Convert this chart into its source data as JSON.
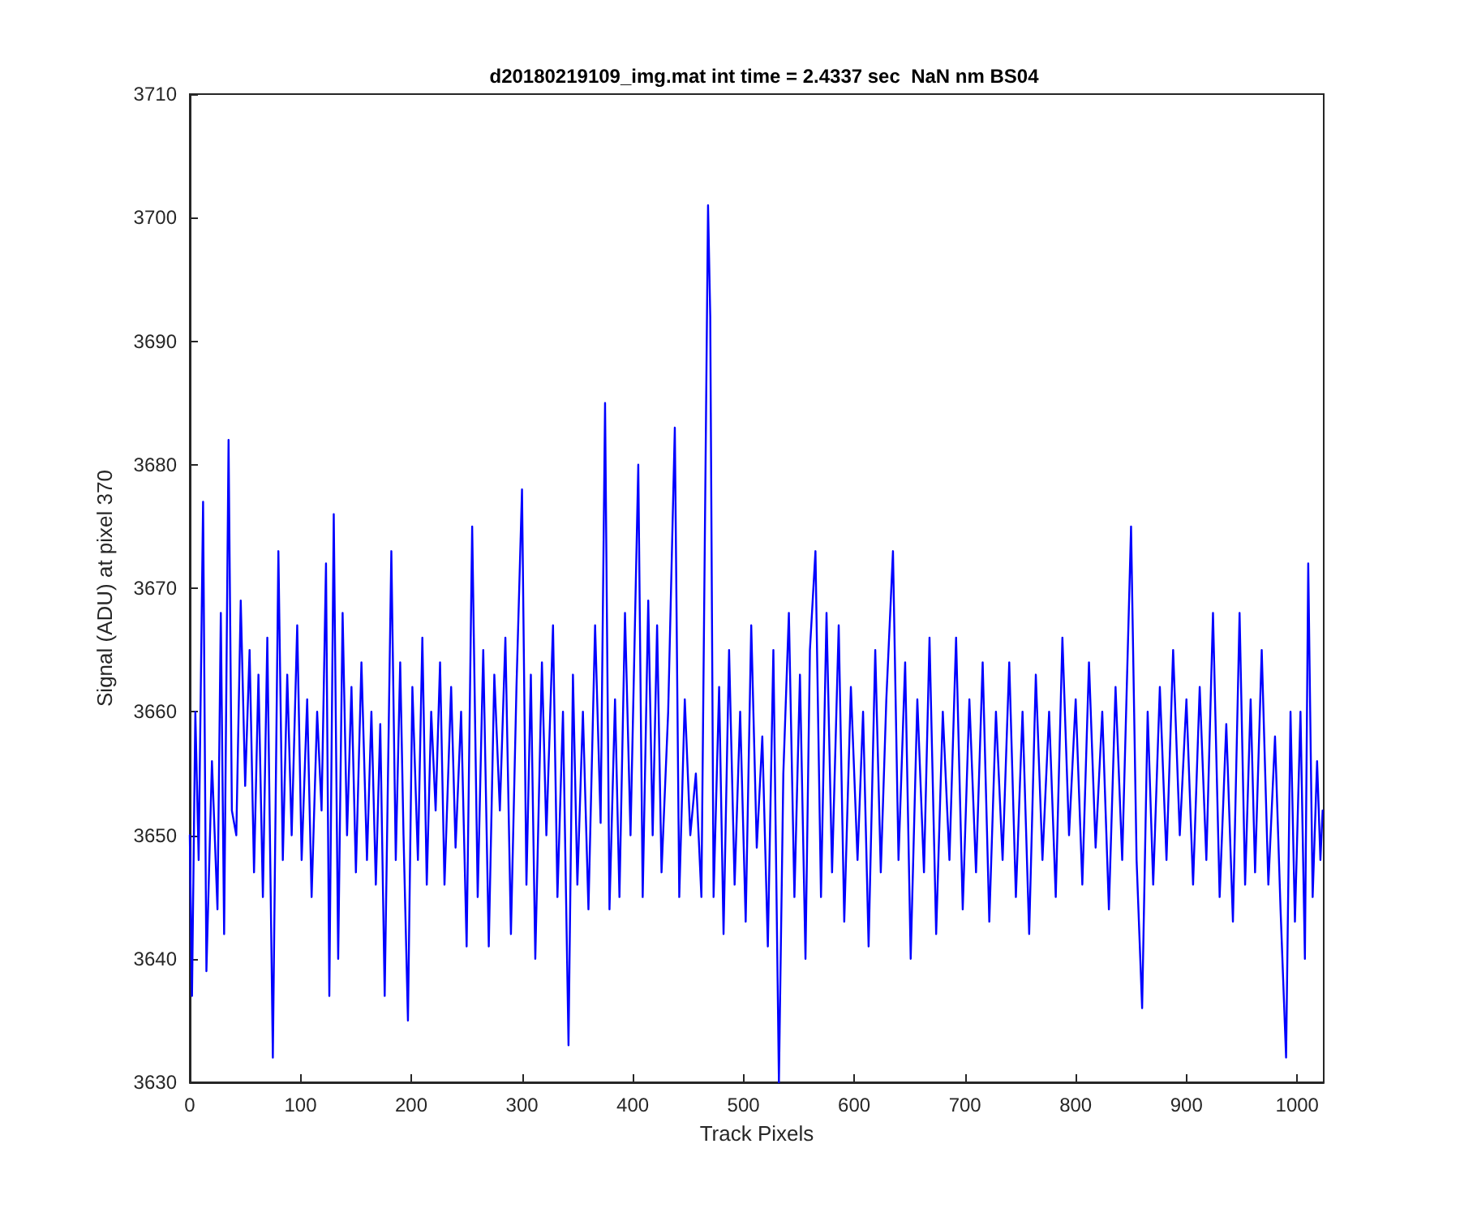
{
  "chart_data": {
    "type": "line",
    "title": "d20180219109_img.mat int time = 2.4337 sec  NaN nm BS04",
    "xlabel": "Track Pixels",
    "ylabel": "Signal (ADU) at pixel 370",
    "x": [
      0,
      2,
      5,
      8,
      12,
      15,
      20,
      25,
      28,
      31,
      35,
      38,
      42,
      46,
      50,
      54,
      58,
      62,
      66,
      70,
      75,
      80,
      84,
      88,
      92,
      97,
      101,
      106,
      110,
      115,
      119,
      123,
      126,
      130,
      134,
      138,
      142,
      146,
      150,
      155,
      160,
      164,
      168,
      172,
      176,
      182,
      186,
      190,
      193,
      197,
      201,
      206,
      210,
      214,
      218,
      222,
      226,
      230,
      236,
      240,
      245,
      250,
      255,
      260,
      265,
      270,
      275,
      280,
      285,
      290,
      295,
      300,
      304,
      308,
      312,
      318,
      322,
      328,
      332,
      337,
      342,
      346,
      350,
      355,
      360,
      366,
      371,
      375,
      379,
      384,
      388,
      393,
      398,
      405,
      409,
      414,
      418,
      422,
      426,
      432,
      438,
      442,
      447,
      452,
      457,
      462,
      468,
      470,
      473,
      478,
      482,
      487,
      492,
      497,
      502,
      507,
      512,
      517,
      522,
      527,
      532,
      536,
      541,
      546,
      551,
      556,
      560,
      565,
      570,
      575,
      580,
      586,
      591,
      597,
      603,
      608,
      613,
      619,
      624,
      629,
      635,
      640,
      646,
      651,
      657,
      663,
      668,
      674,
      680,
      686,
      692,
      698,
      704,
      710,
      716,
      722,
      728,
      734,
      740,
      746,
      752,
      758,
      764,
      770,
      776,
      782,
      788,
      794,
      800,
      806,
      812,
      818,
      824,
      830,
      836,
      842,
      850,
      855,
      860,
      865,
      870,
      876,
      882,
      888,
      894,
      900,
      906,
      912,
      918,
      924,
      930,
      936,
      942,
      948,
      953,
      958,
      962,
      968,
      974,
      980,
      985,
      990,
      994,
      998,
      1003,
      1007,
      1010,
      1014,
      1018,
      1021,
      1023
    ],
    "series": [
      {
        "color": "#0000ff",
        "values": [
          3650,
          3637,
          3660,
          3648,
          3677,
          3639,
          3656,
          3644,
          3668,
          3642,
          3682,
          3652,
          3650,
          3669,
          3654,
          3665,
          3647,
          3663,
          3645,
          3666,
          3632,
          3673,
          3648,
          3663,
          3650,
          3667,
          3648,
          3661,
          3645,
          3660,
          3652,
          3672,
          3637,
          3676,
          3640,
          3668,
          3650,
          3662,
          3647,
          3664,
          3648,
          3660,
          3646,
          3659,
          3637,
          3673,
          3648,
          3664,
          3650,
          3635,
          3662,
          3648,
          3666,
          3646,
          3660,
          3652,
          3664,
          3646,
          3662,
          3649,
          3660,
          3641,
          3675,
          3645,
          3665,
          3641,
          3663,
          3652,
          3666,
          3642,
          3662,
          3678,
          3646,
          3663,
          3640,
          3664,
          3650,
          3667,
          3645,
          3660,
          3633,
          3663,
          3646,
          3660,
          3644,
          3667,
          3651,
          3685,
          3644,
          3661,
          3645,
          3668,
          3650,
          3680,
          3645,
          3669,
          3650,
          3667,
          3647,
          3660,
          3683,
          3645,
          3661,
          3650,
          3655,
          3645,
          3701,
          3692,
          3645,
          3662,
          3642,
          3665,
          3646,
          3660,
          3643,
          3667,
          3649,
          3658,
          3641,
          3665,
          3630,
          3655,
          3668,
          3645,
          3663,
          3640,
          3665,
          3673,
          3645,
          3668,
          3647,
          3667,
          3643,
          3662,
          3648,
          3660,
          3641,
          3665,
          3647,
          3661,
          3673,
          3648,
          3664,
          3640,
          3661,
          3647,
          3666,
          3642,
          3660,
          3648,
          3666,
          3644,
          3661,
          3647,
          3664,
          3643,
          3660,
          3648,
          3664,
          3645,
          3660,
          3642,
          3663,
          3648,
          3660,
          3645,
          3666,
          3650,
          3661,
          3646,
          3664,
          3649,
          3660,
          3644,
          3662,
          3648,
          3675,
          3648,
          3636,
          3660,
          3646,
          3662,
          3648,
          3665,
          3650,
          3661,
          3646,
          3662,
          3648,
          3668,
          3645,
          3659,
          3643,
          3668,
          3646,
          3661,
          3647,
          3665,
          3646,
          3658,
          3644,
          3632,
          3660,
          3643,
          3660,
          3640,
          3672,
          3645,
          3656,
          3648,
          3652
        ]
      }
    ],
    "xlim": [
      0,
      1024
    ],
    "xticks": [
      0,
      100,
      200,
      300,
      400,
      500,
      600,
      700,
      800,
      900,
      1000
    ],
    "ylim": [
      3630,
      3710
    ],
    "yticks": [
      3630,
      3640,
      3650,
      3660,
      3670,
      3680,
      3690,
      3700,
      3710
    ],
    "grid": false,
    "marker": "none",
    "line_style": "solid"
  }
}
